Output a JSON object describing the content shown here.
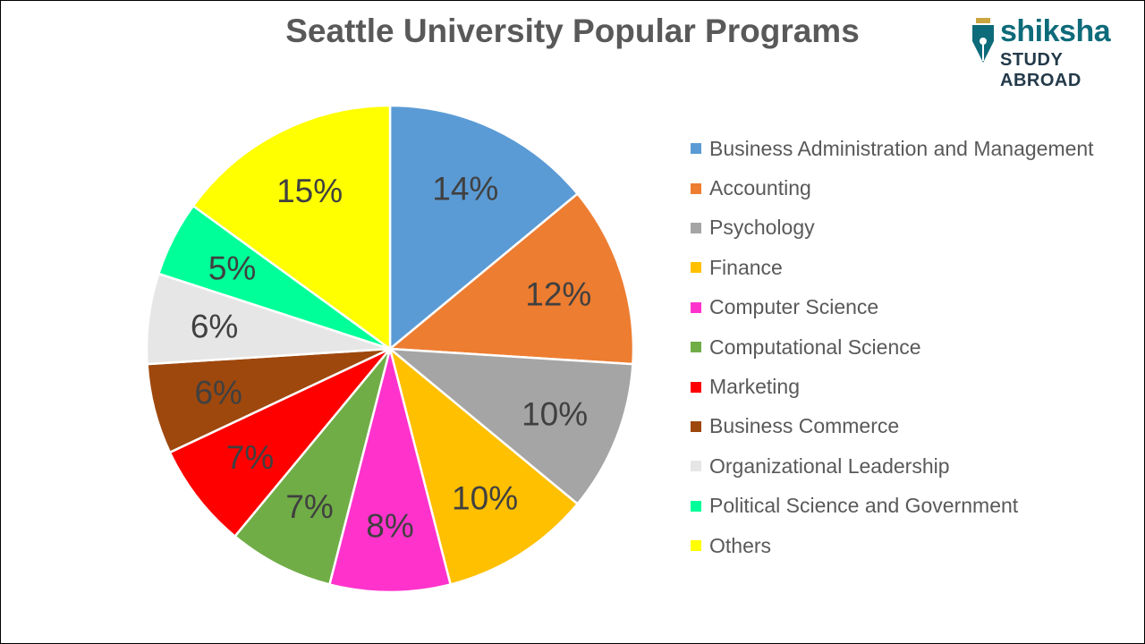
{
  "title": "Seattle University Popular Programs",
  "logo": {
    "brand": "shiksha",
    "sub": "STUDY ABROAD"
  },
  "chart_data": {
    "type": "pie",
    "title": "Seattle University Popular Programs",
    "categories": [
      "Business Administration and Management",
      "Accounting",
      "Psychology",
      "Finance",
      "Computer Science",
      "Computational Science",
      "Marketing",
      "Business Commerce",
      "Organizational Leadership",
      "Political Science and Government",
      "Others"
    ],
    "values": [
      14,
      12,
      10,
      10,
      8,
      7,
      7,
      6,
      6,
      5,
      15
    ],
    "labels": [
      "14%",
      "12%",
      "10%",
      "10%",
      "8%",
      "7%",
      "7%",
      "6%",
      "6%",
      "5%",
      "15%"
    ],
    "colors": [
      "#5b9bd5",
      "#ed7d31",
      "#a5a5a5",
      "#ffc000",
      "#ff33cc",
      "#70ad47",
      "#ff0000",
      "#9e480e",
      "#e7e6e6",
      "#00ff99",
      "#ffff00"
    ],
    "legend_position": "right"
  }
}
